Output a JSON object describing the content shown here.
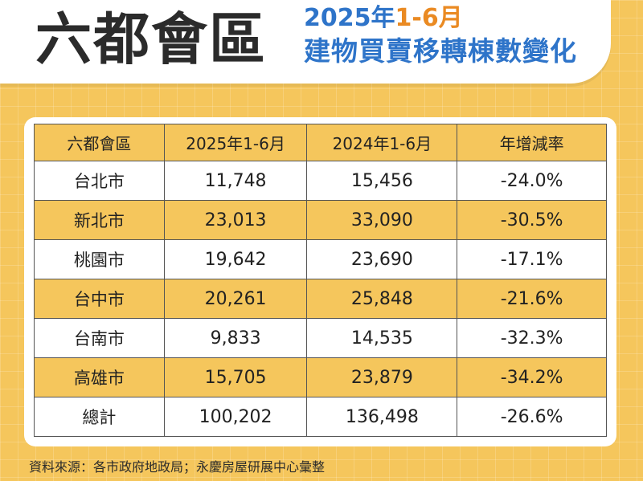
{
  "title": "六都會區",
  "subtitle": {
    "year": "2025年",
    "range": "1-6月",
    "line2": "建物買賣移轉棟數變化"
  },
  "table": {
    "headers": [
      "六都會區",
      "2025年1-6月",
      "2024年1-6月",
      "年增減率"
    ],
    "rows": [
      {
        "region": "台北市",
        "y2025": "11,748",
        "y2024": "15,456",
        "change": "-24.0%"
      },
      {
        "region": "新北市",
        "y2025": "23,013",
        "y2024": "33,090",
        "change": "-30.5%"
      },
      {
        "region": "桃園市",
        "y2025": "19,642",
        "y2024": "23,690",
        "change": "-17.1%"
      },
      {
        "region": "台中市",
        "y2025": "20,261",
        "y2024": "25,848",
        "change": "-21.6%"
      },
      {
        "region": "台南市",
        "y2025": "9,833",
        "y2024": "14,535",
        "change": "-32.3%"
      },
      {
        "region": "高雄市",
        "y2025": "15,705",
        "y2024": "23,879",
        "change": "-34.2%"
      },
      {
        "region": "總計",
        "y2025": "100,202",
        "y2024": "136,498",
        "change": "-26.6%"
      }
    ]
  },
  "source": "資料來源：各市政府地政局；永慶房屋研展中心彙整",
  "colors": {
    "background": "#f5c65c",
    "title_blue": "#2e74c9",
    "title_orange": "#ea8a22",
    "header_fill": "#f5c65c"
  }
}
